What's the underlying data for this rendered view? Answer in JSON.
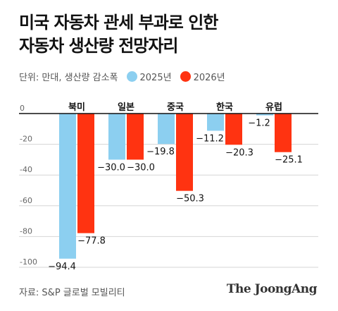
{
  "header": {
    "title_line1": "미국 자동차 관세 부과로 인한",
    "title_line2": "자동차 생산량 전망자리",
    "unit": "단위: 만대, 생산량 감소폭"
  },
  "footer": {
    "source": "자료: S&P 글로벌 모빌리티",
    "brand": "The JoongAng"
  },
  "chart_data": {
    "type": "bar",
    "categories": [
      "북미",
      "일본",
      "중국",
      "한국",
      "유럽"
    ],
    "series": [
      {
        "name": "2025년",
        "color": "#8ccff0",
        "values": [
          -94.4,
          -30.0,
          -19.8,
          -11.2,
          -1.2
        ]
      },
      {
        "name": "2026년",
        "color": "#ff3311",
        "values": [
          -77.8,
          -30.0,
          -50.3,
          -20.3,
          -25.1
        ]
      }
    ],
    "ylim": [
      -100,
      0
    ],
    "yticks": [
      0,
      -20,
      -40,
      -60,
      -80,
      -100
    ],
    "grid": true,
    "legend": "top"
  }
}
